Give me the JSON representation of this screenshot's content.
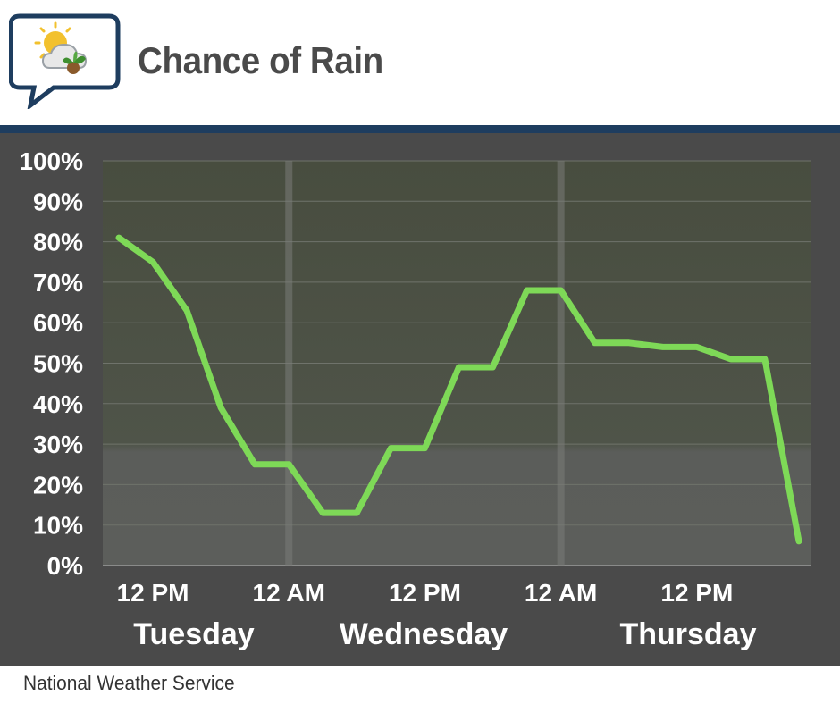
{
  "header": {
    "title": "Chance of Rain",
    "logo_icon": "sun-cloud-leaf-chat-bubble-icon"
  },
  "footer": {
    "source": "National Weather Service"
  },
  "colors": {
    "line": "#7ed957",
    "background": "#4a4a4a",
    "header_rule": "#1e3d5f"
  },
  "chart_data": {
    "type": "line",
    "title": "Chance of Rain",
    "xlabel": "",
    "ylabel": "",
    "ylim": [
      0,
      100
    ],
    "y_tick_labels": [
      "0%",
      "10%",
      "20%",
      "30%",
      "40%",
      "50%",
      "60%",
      "70%",
      "80%",
      "90%",
      "100%"
    ],
    "x_tick_labels": [
      "12 PM",
      "12 AM",
      "12 PM",
      "12 AM",
      "12 PM"
    ],
    "day_labels": [
      "Tuesday",
      "Wednesday",
      "Thursday"
    ],
    "grid": true,
    "series": [
      {
        "x": [
          "Tue 9 AM",
          "Tue 12 PM",
          "Tue 3 PM",
          "Tue 6 PM",
          "Tue 9 PM",
          "Wed 12 AM",
          "Wed 3 AM",
          "Wed 6 AM",
          "Wed 9 AM",
          "Wed 12 PM",
          "Wed 3 PM",
          "Wed 6 PM",
          "Wed 9 PM",
          "Thu 12 AM",
          "Thu 3 AM",
          "Thu 6 AM",
          "Thu 9 AM",
          "Thu 12 PM",
          "Thu 3 PM",
          "Thu 6 PM",
          "Thu 9 PM"
        ],
        "values": [
          81,
          75,
          63,
          39,
          25,
          25,
          13,
          13,
          29,
          29,
          49,
          49,
          68,
          68,
          55,
          55,
          54,
          54,
          51,
          51,
          6
        ]
      }
    ]
  }
}
